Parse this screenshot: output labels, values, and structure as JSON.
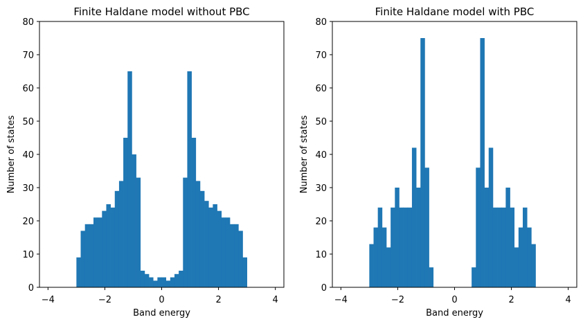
{
  "chart_data": [
    {
      "type": "bar",
      "title": "Finite Haldane model without PBC",
      "xlabel": "Band energy",
      "ylabel": "Number of states",
      "xlim": [
        -4.3,
        4.3
      ],
      "ylim": [
        0,
        80
      ],
      "xticks": [
        -4,
        -2,
        0,
        2,
        4
      ],
      "xtick_labels": [
        "−4",
        "−2",
        "0",
        "2",
        "4"
      ],
      "yticks": [
        0,
        10,
        20,
        30,
        40,
        50,
        60,
        70,
        80
      ],
      "ytick_labels": [
        "0",
        "10",
        "20",
        "30",
        "40",
        "50",
        "60",
        "70",
        "80"
      ],
      "grid": false,
      "color": "#1f77b4",
      "bin_range": [
        -3.0,
        3.0
      ],
      "counts": [
        9,
        17,
        19,
        19,
        21,
        21,
        23,
        25,
        24,
        29,
        32,
        45,
        65,
        40,
        33,
        5,
        4,
        3,
        2,
        3,
        3,
        2,
        3,
        4,
        5,
        33,
        65,
        45,
        32,
        29,
        26,
        24,
        25,
        23,
        21,
        21,
        19,
        19,
        17,
        9
      ]
    },
    {
      "type": "bar",
      "title": "Finite Haldane model with PBC",
      "xlabel": "Band energy",
      "ylabel": "Number of states",
      "xlim": [
        -4.3,
        4.3
      ],
      "ylim": [
        0,
        80
      ],
      "xticks": [
        -4,
        -2,
        0,
        2,
        4
      ],
      "xtick_labels": [
        "−4",
        "−2",
        "0",
        "2",
        "4"
      ],
      "yticks": [
        0,
        10,
        20,
        30,
        40,
        50,
        60,
        70,
        80
      ],
      "ytick_labels": [
        "0",
        "10",
        "20",
        "30",
        "40",
        "50",
        "60",
        "70",
        "80"
      ],
      "grid": false,
      "color": "#1f77b4",
      "bin_range": [
        -3.0,
        3.0
      ],
      "counts": [
        13,
        18,
        24,
        18,
        12,
        24,
        30,
        24,
        24,
        24,
        42,
        30,
        75,
        36,
        6,
        0,
        0,
        0,
        0,
        0,
        0,
        0,
        0,
        0,
        6,
        36,
        75,
        30,
        42,
        24,
        24,
        24,
        30,
        24,
        12,
        18,
        24,
        18,
        13,
        0
      ]
    }
  ]
}
